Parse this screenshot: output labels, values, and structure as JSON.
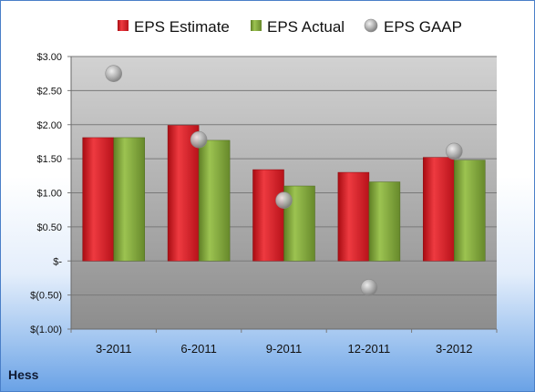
{
  "company": "Hess",
  "chart_data": {
    "type": "bar",
    "title": "",
    "categories": [
      "3-2011",
      "6-2011",
      "9-2011",
      "12-2011",
      "3-2012"
    ],
    "series": [
      {
        "name": "EPS Estimate",
        "kind": "bar",
        "color": "#d8141c",
        "values": [
          1.81,
          1.99,
          1.34,
          1.3,
          1.52
        ]
      },
      {
        "name": "EPS Actual",
        "kind": "bar",
        "color": "#7fa536",
        "values": [
          1.81,
          1.77,
          1.1,
          1.16,
          1.48
        ]
      },
      {
        "name": "EPS GAAP",
        "kind": "scatter",
        "color": "#a8a8a8",
        "values": [
          2.75,
          1.78,
          0.89,
          -0.39,
          1.61
        ]
      }
    ],
    "ylim": [
      -1.0,
      3.0
    ],
    "yticks": [
      3.0,
      2.5,
      2.0,
      1.5,
      1.0,
      0.5,
      0,
      -0.5,
      -1.0
    ],
    "ytick_labels": [
      "$3.00",
      "$2.50",
      "$2.00",
      "$1.50",
      "$1.00",
      "$0.50",
      "$-",
      "$(0.50)",
      "$(1.00)"
    ],
    "grid": true,
    "legend": "top"
  }
}
